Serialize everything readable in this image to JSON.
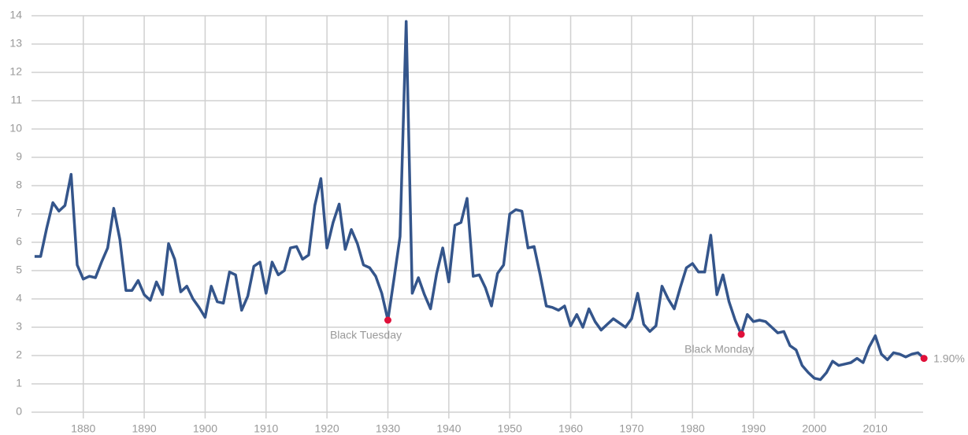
{
  "chart_data": {
    "type": "line",
    "x": [
      1872,
      1873,
      1874,
      1875,
      1876,
      1877,
      1878,
      1879,
      1880,
      1881,
      1882,
      1883,
      1884,
      1885,
      1886,
      1887,
      1888,
      1889,
      1890,
      1891,
      1892,
      1893,
      1894,
      1895,
      1896,
      1897,
      1898,
      1899,
      1900,
      1901,
      1902,
      1903,
      1904,
      1905,
      1906,
      1907,
      1908,
      1909,
      1910,
      1911,
      1912,
      1913,
      1914,
      1915,
      1916,
      1917,
      1918,
      1919,
      1920,
      1921,
      1922,
      1923,
      1924,
      1925,
      1926,
      1927,
      1928,
      1929,
      1930,
      1931,
      1932,
      1933,
      1934,
      1935,
      1936,
      1937,
      1938,
      1939,
      1940,
      1941,
      1942,
      1943,
      1944,
      1945,
      1946,
      1947,
      1948,
      1949,
      1950,
      1951,
      1952,
      1953,
      1954,
      1955,
      1956,
      1957,
      1958,
      1959,
      1960,
      1961,
      1962,
      1963,
      1964,
      1965,
      1966,
      1967,
      1968,
      1969,
      1970,
      1971,
      1972,
      1973,
      1974,
      1975,
      1976,
      1977,
      1978,
      1979,
      1980,
      1981,
      1982,
      1983,
      1984,
      1985,
      1986,
      1987,
      1988,
      1989,
      1990,
      1991,
      1992,
      1993,
      1994,
      1995,
      1996,
      1997,
      1998,
      1999,
      2000,
      2001,
      2002,
      2003,
      2004,
      2005,
      2006,
      2007,
      2008,
      2009,
      2010,
      2011,
      2012,
      2013,
      2014,
      2015,
      2016,
      2017,
      2018
    ],
    "series": [
      {
        "color": "#34558b",
        "values": [
          5.5,
          5.5,
          6.5,
          7.4,
          7.1,
          7.3,
          8.4,
          5.2,
          4.7,
          4.8,
          4.75,
          5.3,
          5.8,
          7.2,
          6.1,
          4.3,
          4.3,
          4.65,
          4.15,
          3.95,
          4.6,
          4.15,
          5.95,
          5.4,
          4.25,
          4.45,
          4.0,
          3.7,
          3.35,
          4.45,
          3.9,
          3.85,
          4.95,
          4.85,
          3.6,
          4.1,
          5.15,
          5.3,
          4.2,
          5.3,
          4.85,
          5.0,
          5.8,
          5.85,
          5.4,
          5.55,
          7.3,
          8.25,
          5.8,
          6.7,
          7.35,
          5.75,
          6.45,
          5.95,
          5.2,
          5.1,
          4.8,
          4.2,
          3.25,
          4.7,
          6.2,
          13.8,
          4.2,
          4.75,
          4.15,
          3.65,
          4.9,
          5.8,
          4.6,
          6.6,
          6.7,
          7.55,
          4.8,
          4.85,
          4.4,
          3.75,
          4.9,
          5.2,
          7.0,
          7.15,
          7.1,
          5.8,
          5.85,
          4.85,
          3.75,
          3.7,
          3.6,
          3.75,
          3.05,
          3.45,
          3.0,
          3.65,
          3.2,
          2.9,
          3.1,
          3.3,
          3.15,
          3.0,
          3.3,
          4.2,
          3.1,
          2.85,
          3.05,
          4.45,
          4.0,
          3.65,
          4.4,
          5.1,
          5.25,
          4.95,
          4.95,
          6.25,
          4.15,
          4.85,
          3.9,
          3.25,
          2.75,
          3.45,
          3.2,
          3.25,
          3.2,
          3.0,
          2.8,
          2.85,
          2.35,
          2.2,
          1.65,
          1.4,
          1.2,
          1.15,
          1.4,
          1.8,
          1.65,
          1.7,
          1.75,
          1.9,
          1.75,
          2.3,
          2.7,
          2.05,
          1.85,
          2.1,
          2.05,
          1.95,
          2.05,
          2.1,
          1.9
        ]
      }
    ],
    "annotations": [
      {
        "text": "Black Tuesday",
        "x": 1930,
        "y": 3.25
      },
      {
        "text": "Black Monday",
        "x": 1988,
        "y": 2.75
      },
      {
        "text": "1.90%",
        "x": 2018,
        "y": 1.9
      }
    ],
    "annotation_color": "#e0103a",
    "xlim": [
      1871.5,
      2018.5
    ],
    "xticks": [
      1880,
      1890,
      1900,
      1910,
      1920,
      1930,
      1940,
      1950,
      1960,
      1970,
      1980,
      1990,
      2000,
      2010
    ],
    "ylim": [
      0,
      14
    ],
    "yticks": [
      0,
      1,
      2,
      3,
      4,
      5,
      6,
      7,
      8,
      9,
      10,
      11,
      12,
      13,
      14
    ],
    "grid": true
  }
}
